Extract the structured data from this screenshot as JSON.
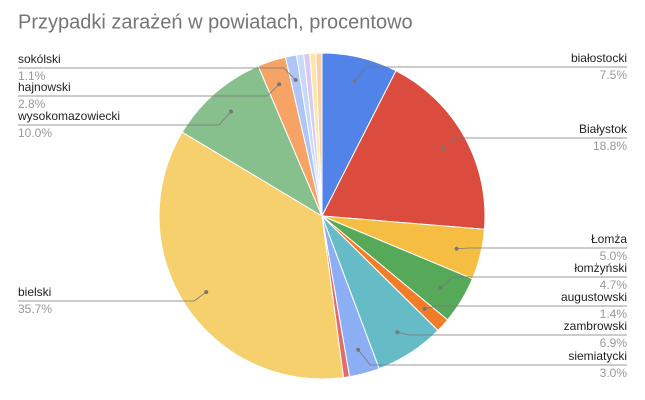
{
  "chart_data": {
    "type": "pie",
    "title": "Przypadki zarażeń w powiatach, procentowo",
    "categories": [
      "białostocki",
      "Białystok",
      "Łomża",
      "łomżyński",
      "augustowski",
      "zambrowski",
      "siemiatycki",
      null,
      "bielski",
      "wysokomazowiecki",
      "hajnowski",
      "sokólski",
      null,
      null,
      null,
      null
    ],
    "values": [
      7.5,
      18.8,
      5.0,
      4.7,
      1.4,
      6.9,
      3.0,
      0.6,
      35.7,
      10.0,
      2.8,
      1.1,
      0.7,
      0.6,
      0.6,
      0.6
    ],
    "value_labels": [
      "7.5%",
      "18.8%",
      "5.0%",
      "4.7%",
      "1.4%",
      "6.9%",
      "3.0%",
      null,
      "35.7%",
      "10.0%",
      "2.8%",
      "1.1%",
      null,
      null,
      null,
      null
    ],
    "colors": [
      "#5183e8",
      "#db4b3e",
      "#f5be42",
      "#56a959",
      "#f27c27",
      "#66bcc6",
      "#8caef4",
      "#e06c6c",
      "#f6d06d",
      "#88c08d",
      "#f6a466",
      "#aec6f7",
      "#c8d8f9",
      "#d7c9ef",
      "#fce6a8",
      "#f9cfa8"
    ]
  }
}
